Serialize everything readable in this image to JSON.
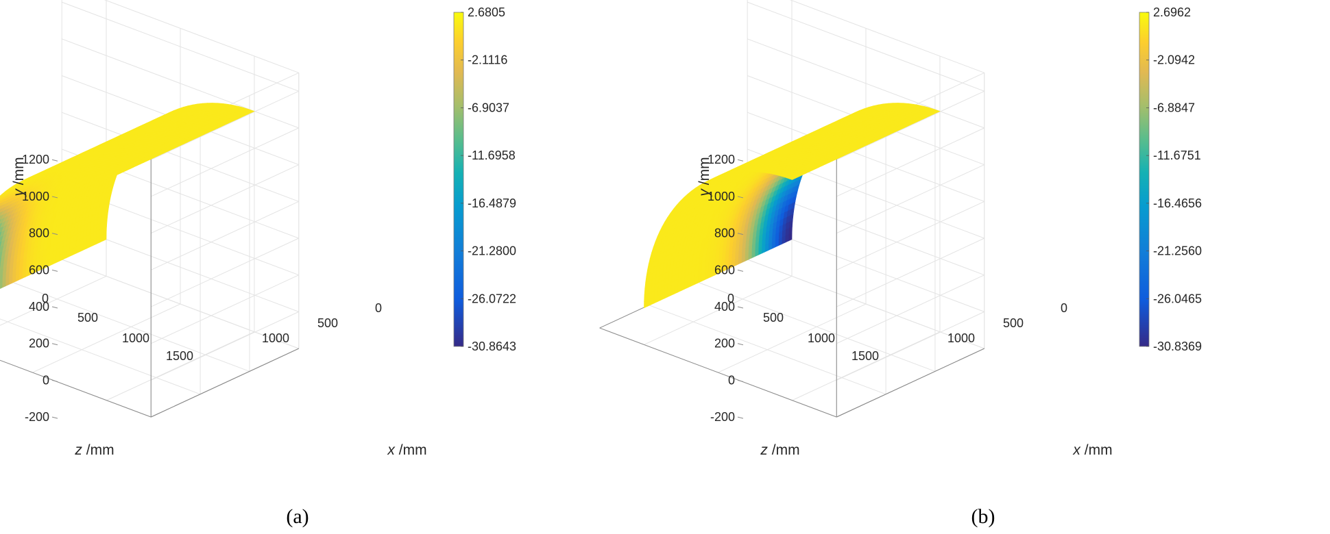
{
  "chart_data": [
    {
      "type": "surface",
      "caption": "(a)",
      "xlabel_var": "x",
      "xlabel_unit": " /mm",
      "ylabel_var": "y",
      "ylabel_unit": " /mm",
      "zlabel_var": "z",
      "zlabel_unit": " /mm",
      "x_ticks": [
        "1000",
        "500",
        "0"
      ],
      "y_ticks": [
        "1200",
        "1000",
        "800",
        "600",
        "400",
        "200",
        "0",
        "-200"
      ],
      "z_ticks": [
        "0",
        "500",
        "1000",
        "1500"
      ],
      "colorbar": {
        "colormap": "parula",
        "min": -30.8643,
        "max": 2.6805,
        "ticks": [
          "2.6805",
          "-2.1116",
          "-6.9037",
          "-11.6958",
          "-16.4879",
          "-21.2800",
          "-26.0722",
          "-30.8643"
        ]
      },
      "field_extreme": {
        "value": -30.8643,
        "location": "front-right corner (x≈1000, y≈0, z≈1500)"
      },
      "field_background": 1.5
    },
    {
      "type": "surface",
      "caption": "(b)",
      "xlabel_var": "x",
      "xlabel_unit": " /mm",
      "ylabel_var": "y",
      "ylabel_unit": " /mm",
      "zlabel_var": "z",
      "zlabel_unit": " /mm",
      "x_ticks": [
        "1000",
        "500",
        "0"
      ],
      "y_ticks": [
        "1200",
        "1000",
        "800",
        "600",
        "400",
        "200",
        "0",
        "-200"
      ],
      "z_ticks": [
        "0",
        "500",
        "1000",
        "1500"
      ],
      "colorbar": {
        "colormap": "parula",
        "min": -30.8369,
        "max": 2.6962,
        "ticks": [
          "2.6962",
          "-2.0942",
          "-6.8847",
          "-11.6751",
          "-16.4656",
          "-21.2560",
          "-26.0465",
          "-30.8369"
        ]
      },
      "field_extreme": {
        "value": -30.8369,
        "location": "back-right corner (x≈1000, y≈0, z≈0)"
      },
      "field_background": 1.5
    }
  ]
}
